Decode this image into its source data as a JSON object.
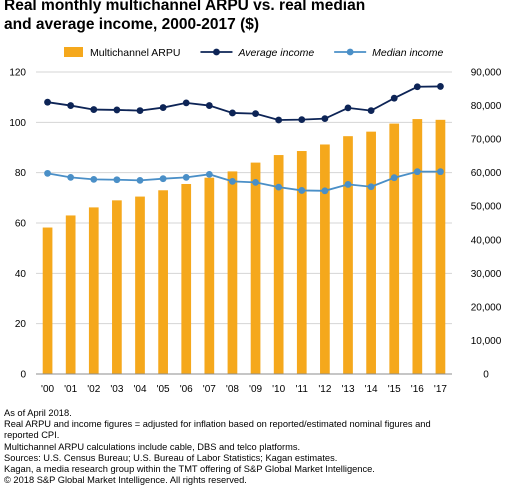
{
  "title_lines": [
    "Real monthly multichannel ARPU vs. real median",
    "and average income, 2000-2017 ($)"
  ],
  "chart_data": {
    "type": "bar",
    "title": "Real monthly multichannel ARPU vs. real median and average income, 2000-2017 ($)",
    "categories": [
      "'00",
      "'01",
      "'02",
      "'03",
      "'04",
      "'05",
      "'06",
      "'07",
      "'08",
      "'09",
      "'10",
      "'11",
      "'12",
      "'13",
      "'14",
      "'15",
      "'16",
      "'17"
    ],
    "left_axis": {
      "ylim": [
        0,
        120
      ],
      "ticks": [
        "0",
        "20",
        "40",
        "60",
        "80",
        "100",
        "120"
      ],
      "tick_values": [
        0,
        20,
        40,
        60,
        80,
        100,
        120
      ]
    },
    "right_axis": {
      "ylim": [
        0,
        90000
      ],
      "ticks": [
        "0",
        "10,000",
        "20,000",
        "30,000",
        "40,000",
        "50,000",
        "60,000",
        "70,000",
        "80,000",
        "90,000"
      ],
      "tick_values": [
        0,
        10000,
        20000,
        30000,
        40000,
        50000,
        60000,
        70000,
        80000,
        90000
      ]
    },
    "grid": "horizontal",
    "legend_position": "top",
    "series": [
      {
        "name": "Multichannel ARPU",
        "type": "bar",
        "axis": "left",
        "color": "#F5A81C",
        "values": [
          58.2,
          63.0,
          66.2,
          69.0,
          70.5,
          73.0,
          75.5,
          78.0,
          80.5,
          84.0,
          87.0,
          88.6,
          91.2,
          94.5,
          96.3,
          99.5,
          101.3,
          101.0
        ]
      },
      {
        "name": "Average income",
        "type": "line",
        "axis": "right",
        "color": "#0D2456",
        "italic": true,
        "values": [
          81000,
          80000,
          78800,
          78700,
          78500,
          79400,
          80800,
          80000,
          77800,
          77600,
          75700,
          75800,
          76100,
          79300,
          78500,
          82200,
          85600,
          85700
        ]
      },
      {
        "name": "Median income",
        "type": "line",
        "axis": "right",
        "color": "#4A8FC7",
        "italic": true,
        "values": [
          59800,
          58600,
          58000,
          57900,
          57700,
          58200,
          58600,
          59500,
          57400,
          57100,
          55700,
          54700,
          54600,
          56500,
          55800,
          58500,
          60300,
          60300
        ]
      }
    ]
  },
  "notes": [
    "As of April 2018.",
    "Real ARPU and income figures = adjusted for inflation based on reported/estimated nominal figures and",
    "reported CPI.",
    "Multichannel ARPU calculations include cable, DBS and telco platforms.",
    "Sources: U.S. Census Bureau; U.S. Bureau of Labor Statistics; Kagan estimates.",
    "Kagan, a media research group within the TMT offering of S&P Global Market Intelligence.",
    "© 2018 S&P Global Market Intelligence. All rights reserved."
  ]
}
